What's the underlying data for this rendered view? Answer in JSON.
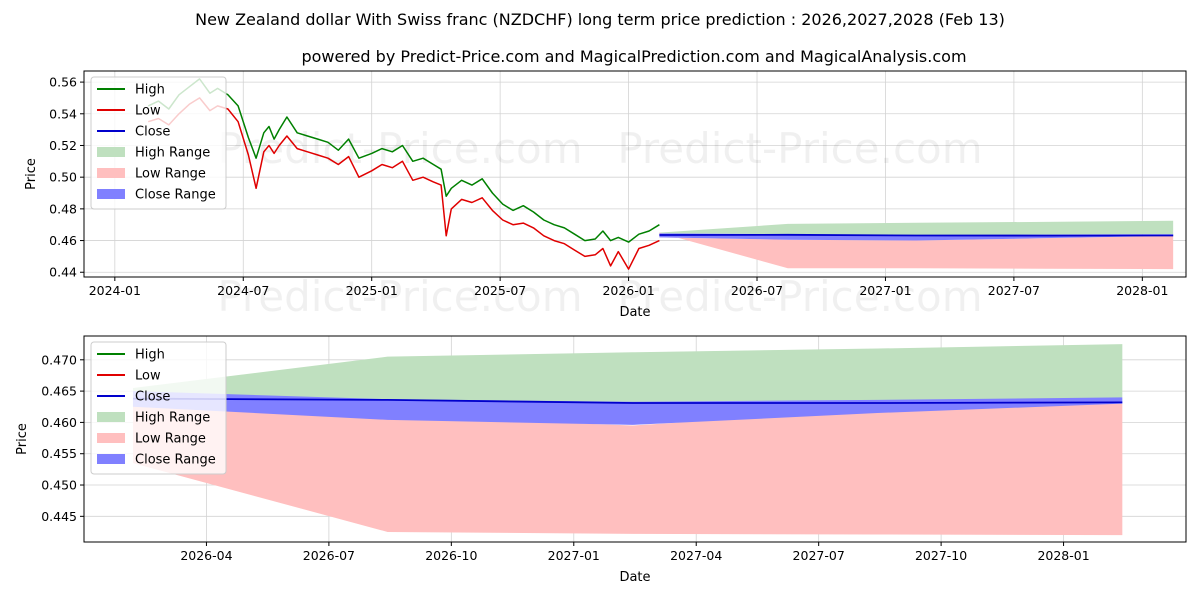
{
  "title": "New Zealand dollar With Swiss franc (NZDCHF) long term price prediction : 2026,2027,2028 (Feb 13)",
  "subtitle": "powered by Predict-Price.com and MagicalPrediction.com and MagicalAnalysis.com",
  "watermark": "Predict-Price.com",
  "colors": {
    "high": "#008000",
    "low": "#e00000",
    "close": "#0000cc",
    "high_range": "#bfe0bf",
    "low_range": "#ffbfbf",
    "close_range": "#8080ff",
    "grid": "#d3d3d3"
  },
  "legend": [
    "High",
    "Low",
    "Close",
    "High Range",
    "Low Range",
    "Close Range"
  ],
  "chart_data": [
    {
      "type": "line",
      "name": "long-term",
      "xlabel": "Date",
      "ylabel": "Price",
      "xlim": [
        2023.88,
        2028.17
      ],
      "ylim": [
        0.437,
        0.567
      ],
      "xticks": [
        {
          "v": 2024.0,
          "label": "2024-01"
        },
        {
          "v": 2024.5,
          "label": "2024-07"
        },
        {
          "v": 2025.0,
          "label": "2025-01"
        },
        {
          "v": 2025.5,
          "label": "2025-07"
        },
        {
          "v": 2026.0,
          "label": "2026-01"
        },
        {
          "v": 2026.5,
          "label": "2026-07"
        },
        {
          "v": 2027.0,
          "label": "2027-01"
        },
        {
          "v": 2027.5,
          "label": "2027-07"
        },
        {
          "v": 2028.0,
          "label": "2028-01"
        }
      ],
      "yticks": [
        0.44,
        0.46,
        0.48,
        0.5,
        0.52,
        0.54,
        0.56
      ],
      "legend_position": "upper-left",
      "history": {
        "x": [
          2024.13,
          2024.17,
          2024.21,
          2024.25,
          2024.29,
          2024.33,
          2024.37,
          2024.4,
          2024.44,
          2024.48,
          2024.52,
          2024.55,
          2024.58,
          2024.6,
          2024.62,
          2024.64,
          2024.67,
          2024.71,
          2024.75,
          2024.79,
          2024.83,
          2024.87,
          2024.91,
          2024.95,
          2025.0,
          2025.04,
          2025.08,
          2025.12,
          2025.16,
          2025.2,
          2025.24,
          2025.27,
          2025.29,
          2025.31,
          2025.35,
          2025.39,
          2025.43,
          2025.47,
          2025.51,
          2025.55,
          2025.59,
          2025.63,
          2025.67,
          2025.71,
          2025.75,
          2025.79,
          2025.83,
          2025.87,
          2025.9,
          2025.93,
          2025.96,
          2026.0,
          2026.04,
          2026.08,
          2026.12
        ],
        "high": [
          0.545,
          0.548,
          0.543,
          0.552,
          0.557,
          0.562,
          0.553,
          0.556,
          0.552,
          0.545,
          0.525,
          0.512,
          0.528,
          0.532,
          0.524,
          0.53,
          0.538,
          0.528,
          0.526,
          0.524,
          0.522,
          0.517,
          0.524,
          0.512,
          0.515,
          0.518,
          0.516,
          0.52,
          0.51,
          0.512,
          0.508,
          0.505,
          0.488,
          0.493,
          0.498,
          0.495,
          0.499,
          0.49,
          0.483,
          0.479,
          0.482,
          0.478,
          0.473,
          0.47,
          0.468,
          0.464,
          0.46,
          0.461,
          0.466,
          0.46,
          0.462,
          0.459,
          0.464,
          0.466,
          0.47
        ],
        "low": [
          0.535,
          0.537,
          0.533,
          0.54,
          0.546,
          0.55,
          0.542,
          0.545,
          0.543,
          0.535,
          0.514,
          0.493,
          0.516,
          0.52,
          0.515,
          0.52,
          0.526,
          0.518,
          0.516,
          0.514,
          0.512,
          0.508,
          0.513,
          0.5,
          0.504,
          0.508,
          0.506,
          0.51,
          0.498,
          0.5,
          0.497,
          0.495,
          0.463,
          0.48,
          0.486,
          0.484,
          0.487,
          0.479,
          0.473,
          0.47,
          0.471,
          0.468,
          0.463,
          0.46,
          0.458,
          0.454,
          0.45,
          0.451,
          0.455,
          0.444,
          0.453,
          0.442,
          0.455,
          0.457,
          0.46
        ]
      },
      "forecast": {
        "x": [
          2026.12,
          2026.62,
          2027.12,
          2027.62,
          2028.12
        ],
        "high_range_top": [
          0.465,
          0.4705,
          0.4712,
          0.4718,
          0.4725
        ],
        "low_range_bottom": [
          0.465,
          0.4425,
          0.4425,
          0.4422,
          0.442
        ],
        "close_range_top": [
          0.4645,
          0.464,
          0.4635,
          0.4638,
          0.464
        ],
        "close_range_bottom": [
          0.462,
          0.4605,
          0.46,
          0.4615,
          0.463
        ],
        "close": [
          0.4635,
          0.4636,
          0.4632,
          0.4631,
          0.4632
        ]
      }
    },
    {
      "type": "area",
      "name": "forecast-zoom",
      "xlabel": "Date",
      "ylabel": "Price",
      "xlim": [
        2026.0,
        2028.25
      ],
      "ylim": [
        0.4409,
        0.4738
      ],
      "xticks": [
        {
          "v": 2026.25,
          "label": "2026-04"
        },
        {
          "v": 2026.5,
          "label": "2026-07"
        },
        {
          "v": 2026.75,
          "label": "2026-10"
        },
        {
          "v": 2027.0,
          "label": "2027-01"
        },
        {
          "v": 2027.25,
          "label": "2027-04"
        },
        {
          "v": 2027.5,
          "label": "2027-07"
        },
        {
          "v": 2027.75,
          "label": "2027-10"
        },
        {
          "v": 2028.0,
          "label": "2028-01"
        }
      ],
      "yticks": [
        0.445,
        0.45,
        0.455,
        0.46,
        0.465,
        0.47
      ],
      "legend_position": "upper-left",
      "x": [
        2026.1,
        2026.62,
        2027.12,
        2027.62,
        2028.12
      ],
      "high_range_top": [
        0.4655,
        0.4705,
        0.4712,
        0.4718,
        0.4725
      ],
      "high_range_bottom": [
        0.4635,
        0.4606,
        0.4598,
        0.4615,
        0.464
      ],
      "low_range_top": [
        0.464,
        0.461,
        0.4595,
        0.462,
        0.463
      ],
      "low_range_bottom": [
        0.4535,
        0.4425,
        0.4422,
        0.4421,
        0.442
      ],
      "close_range_top": [
        0.465,
        0.4637,
        0.4633,
        0.4636,
        0.464
      ],
      "close_range_bottom": [
        0.4625,
        0.4604,
        0.4596,
        0.4615,
        0.463
      ],
      "close": [
        0.4638,
        0.4636,
        0.4631,
        0.4631,
        0.4632
      ]
    }
  ]
}
